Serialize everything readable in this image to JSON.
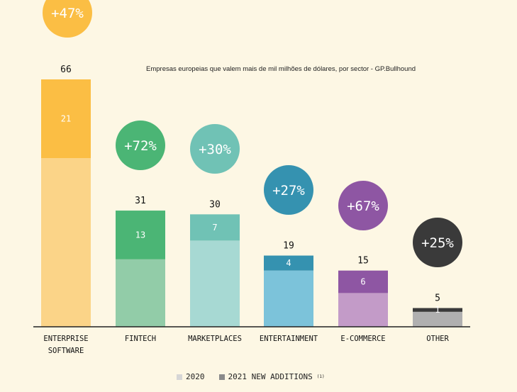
{
  "chart_data": {
    "type": "bar",
    "stacked": true,
    "title": "",
    "subtitle": "Empresas europeias que valem mais de mil milhões de dólares, por sector - GP.Bullhound",
    "xlabel": "",
    "ylabel": "",
    "ylim": [
      0,
      66
    ],
    "grid": false,
    "legend_position": "bottom",
    "categories": [
      {
        "label": "ENTERPRISE\nSOFTWARE",
        "total": 66,
        "base_2020": 45,
        "added_2021": 21,
        "growth": "+47%",
        "base_color": "#fbd488",
        "add_color": "#fbbe44",
        "bubble_color": "#fbbe44"
      },
      {
        "label": "FINTECH",
        "total": 31,
        "base_2020": 18,
        "added_2021": 13,
        "growth": "+72%",
        "base_color": "#92cca8",
        "add_color": "#4bb575",
        "bubble_color": "#4bb575"
      },
      {
        "label": "MARKETPLACES",
        "total": 30,
        "base_2020": 23,
        "added_2021": 7,
        "growth": "+30%",
        "base_color": "#a7d9d3",
        "add_color": "#70c2b5",
        "bubble_color": "#70c2b5"
      },
      {
        "label": "ENTERTAINMENT",
        "total": 19,
        "base_2020": 15,
        "added_2021": 4,
        "growth": "+27%",
        "base_color": "#7cc3da",
        "add_color": "#3592b0",
        "bubble_color": "#3592b0"
      },
      {
        "label": "E-COMMERCE",
        "total": 15,
        "base_2020": 9,
        "added_2021": 6,
        "growth": "+67%",
        "base_color": "#c39bc8",
        "add_color": "#8e56a3",
        "bubble_color": "#8e56a3"
      },
      {
        "label": "OTHER",
        "total": 5,
        "base_2020": 4,
        "added_2021": 1,
        "growth": "+25%",
        "base_color": "#b0b0b0",
        "add_color": "#3a3a3a",
        "bubble_color": "#3a3a3a"
      }
    ],
    "series": [
      {
        "name": "2020",
        "color": "#d6d6d6"
      },
      {
        "name": "2021 NEW ADDITIONS",
        "color": "#8a8a8a"
      }
    ]
  },
  "legend": {
    "item_2020": "2020",
    "item_2021": "2021 NEW ADDITIONS",
    "note": "(1)"
  }
}
